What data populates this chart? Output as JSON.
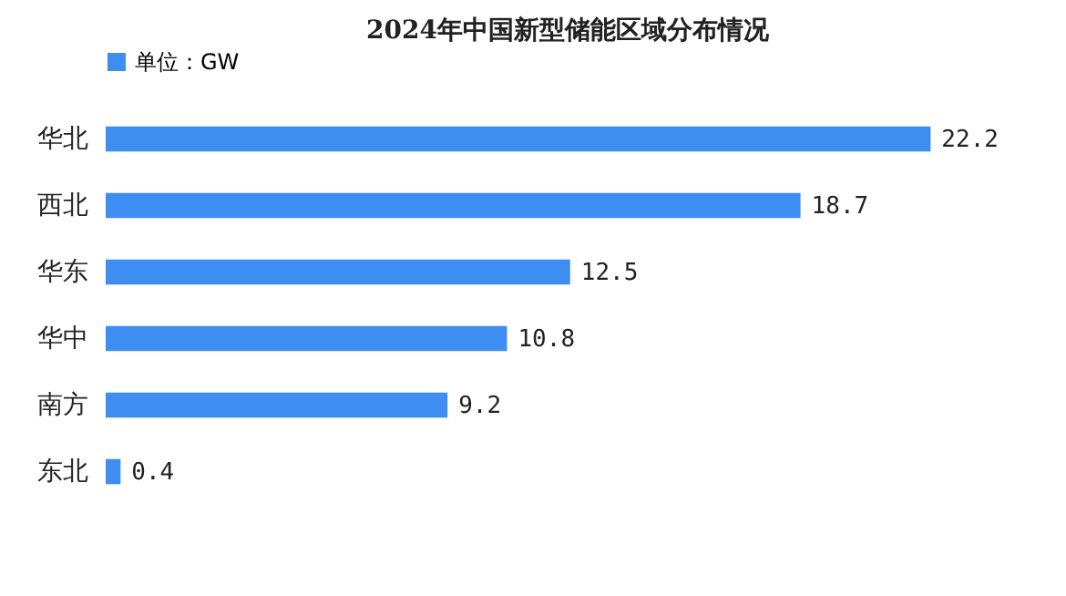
{
  "chart_data": {
    "type": "bar",
    "orientation": "horizontal",
    "title": "2024年中国新型储能区域分布情况",
    "categories": [
      "华北",
      "西北",
      "华东",
      "华中",
      "南方",
      "东北"
    ],
    "series": [
      {
        "name": "单位：GW",
        "color": "#3d8ef0",
        "values": [
          22.2,
          18.7,
          12.5,
          10.8,
          9.2,
          0.4
        ]
      }
    ],
    "data_labels": true,
    "legend": "top",
    "grid": false
  }
}
